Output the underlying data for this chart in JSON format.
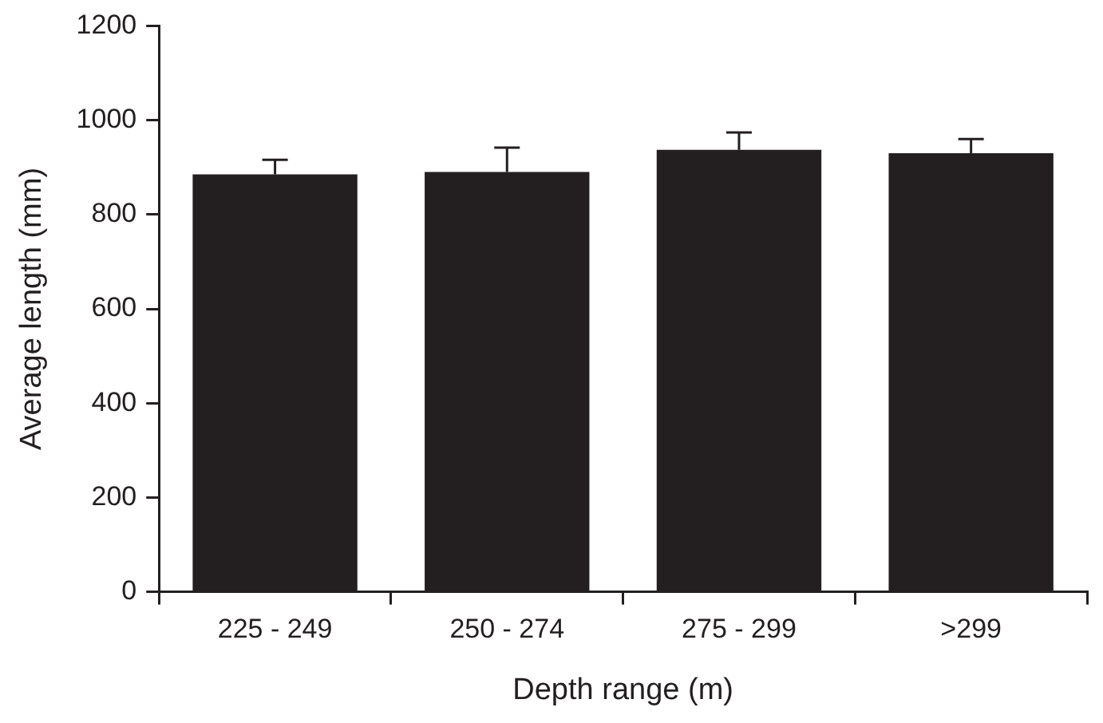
{
  "chart_data": {
    "type": "bar",
    "xlabel": "Depth range (m)",
    "ylabel": "Average length (mm)",
    "categories": [
      "225 - 249",
      "250 - 274",
      "275 - 299",
      ">299"
    ],
    "values": [
      885,
      890,
      937,
      930
    ],
    "errors": [
      [
        885,
        916
      ],
      [
        890,
        942
      ],
      [
        937,
        974
      ],
      [
        930,
        960
      ]
    ],
    "color": "#231f20",
    "ylim": [
      0,
      1200
    ],
    "yticks": [
      0,
      200,
      400,
      600,
      800,
      1000,
      1200
    ],
    "grid": false,
    "legend": false
  }
}
